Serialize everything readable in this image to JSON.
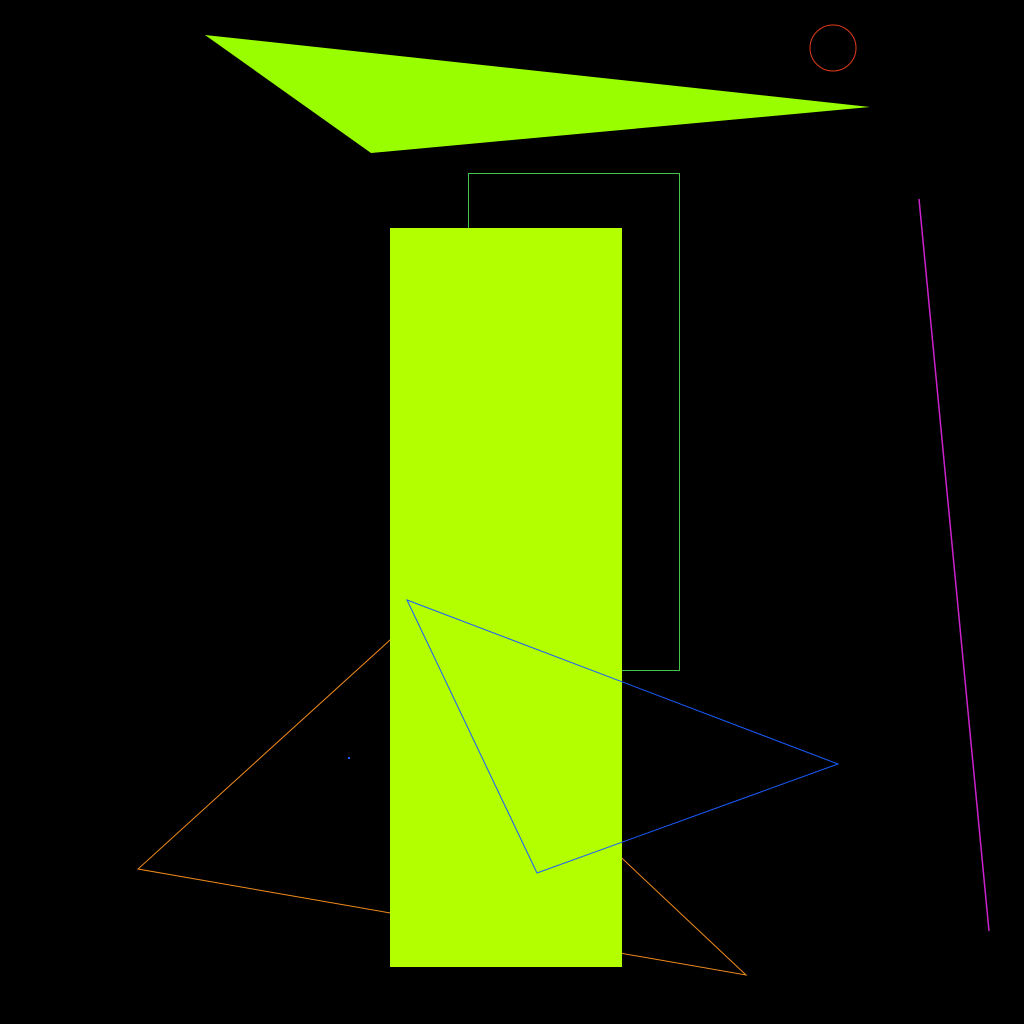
{
  "canvas": {
    "background": "#000000"
  },
  "shapes": {
    "top_triangle": {
      "kind": "filled-triangle",
      "fill": "#99ff00"
    },
    "small_circle": {
      "kind": "outlined-circle",
      "stroke": "#e23a1c"
    },
    "outline_rectangle": {
      "kind": "outlined-rectangle",
      "stroke": "#44c24a"
    },
    "tall_rectangle": {
      "kind": "filled-rectangle",
      "fill": "#b3ff00"
    },
    "orange_triangle": {
      "kind": "outlined-triangle",
      "stroke": "#f08a1c"
    },
    "blue_triangle": {
      "kind": "outlined-triangle",
      "stroke": "#1a5cff"
    },
    "blue_dot": {
      "kind": "dot",
      "fill": "#1a5cff"
    },
    "magenta_line": {
      "kind": "line",
      "stroke": "#cc22cc"
    }
  }
}
